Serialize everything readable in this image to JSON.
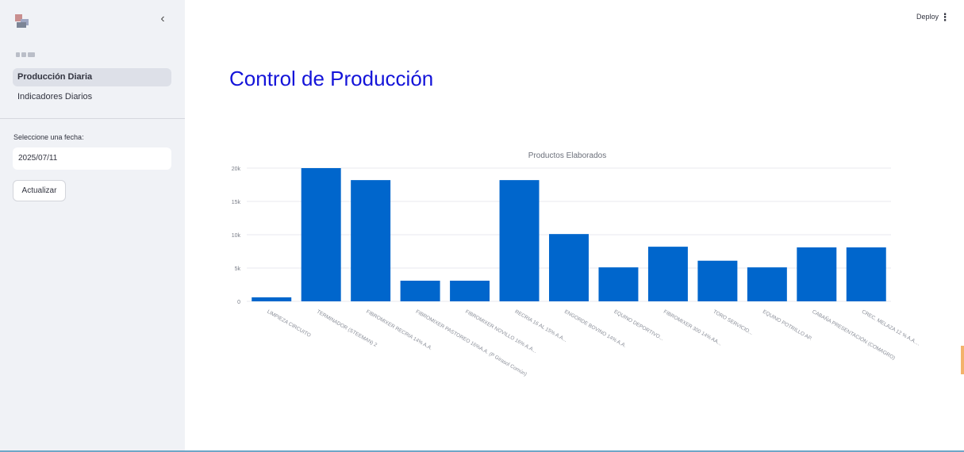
{
  "sidebar": {
    "nav": [
      {
        "label": "Producción Diaria",
        "active": true
      },
      {
        "label": "Indicadores Diarios",
        "active": false
      }
    ],
    "date_label": "Seleccione una fecha:",
    "date_value": "2025/07/11",
    "update_button": "Actualizar",
    "collapse_icon": "chevron-left-icon"
  },
  "header": {
    "deploy_label": "Deploy",
    "menu_icon": "kebab-menu-icon"
  },
  "main": {
    "title": "Control de Producción"
  },
  "colors": {
    "title": "#1414d9",
    "bar": "#0066cc",
    "sidebar_bg": "#f0f2f6"
  },
  "chart_data": {
    "type": "bar",
    "title": "Productos Elaborados",
    "categories": [
      "LIMPIEZA CIRCUITO",
      "TERMINADOR (STEEMAN) 2",
      "FIBROMIXER RECRIA 14% A.A.",
      "FIBROMIXER PASTOREO 16%A.A. (P Girasol Común)",
      "FIBROMIXER NOVILLO 16% A.A...",
      "RECRIA 16 AL 15% A.A...",
      "ENGORDE BOVINO 14% A.A.",
      "EQUINO DEPORTIVO...",
      "FIBROMIXER 300 14% AA...",
      "TORO SERVICIO...",
      "EQUINO POTRILLO AP.",
      "CABAÑA PRESENTACIÓN (COMAGRO)",
      "CREC. MELAZA 12 % A.A...."
    ],
    "values": [
      600,
      20000,
      18200,
      3100,
      3100,
      18200,
      10100,
      5100,
      8200,
      6100,
      5100,
      8100,
      8100
    ],
    "ylim": [
      0,
      20000
    ],
    "yticks": [
      0,
      5000,
      10000,
      15000,
      20000
    ],
    "ytick_labels": [
      "0",
      "5k",
      "10k",
      "15k",
      "20k"
    ],
    "xlabel": "",
    "ylabel": "",
    "grid": true
  }
}
